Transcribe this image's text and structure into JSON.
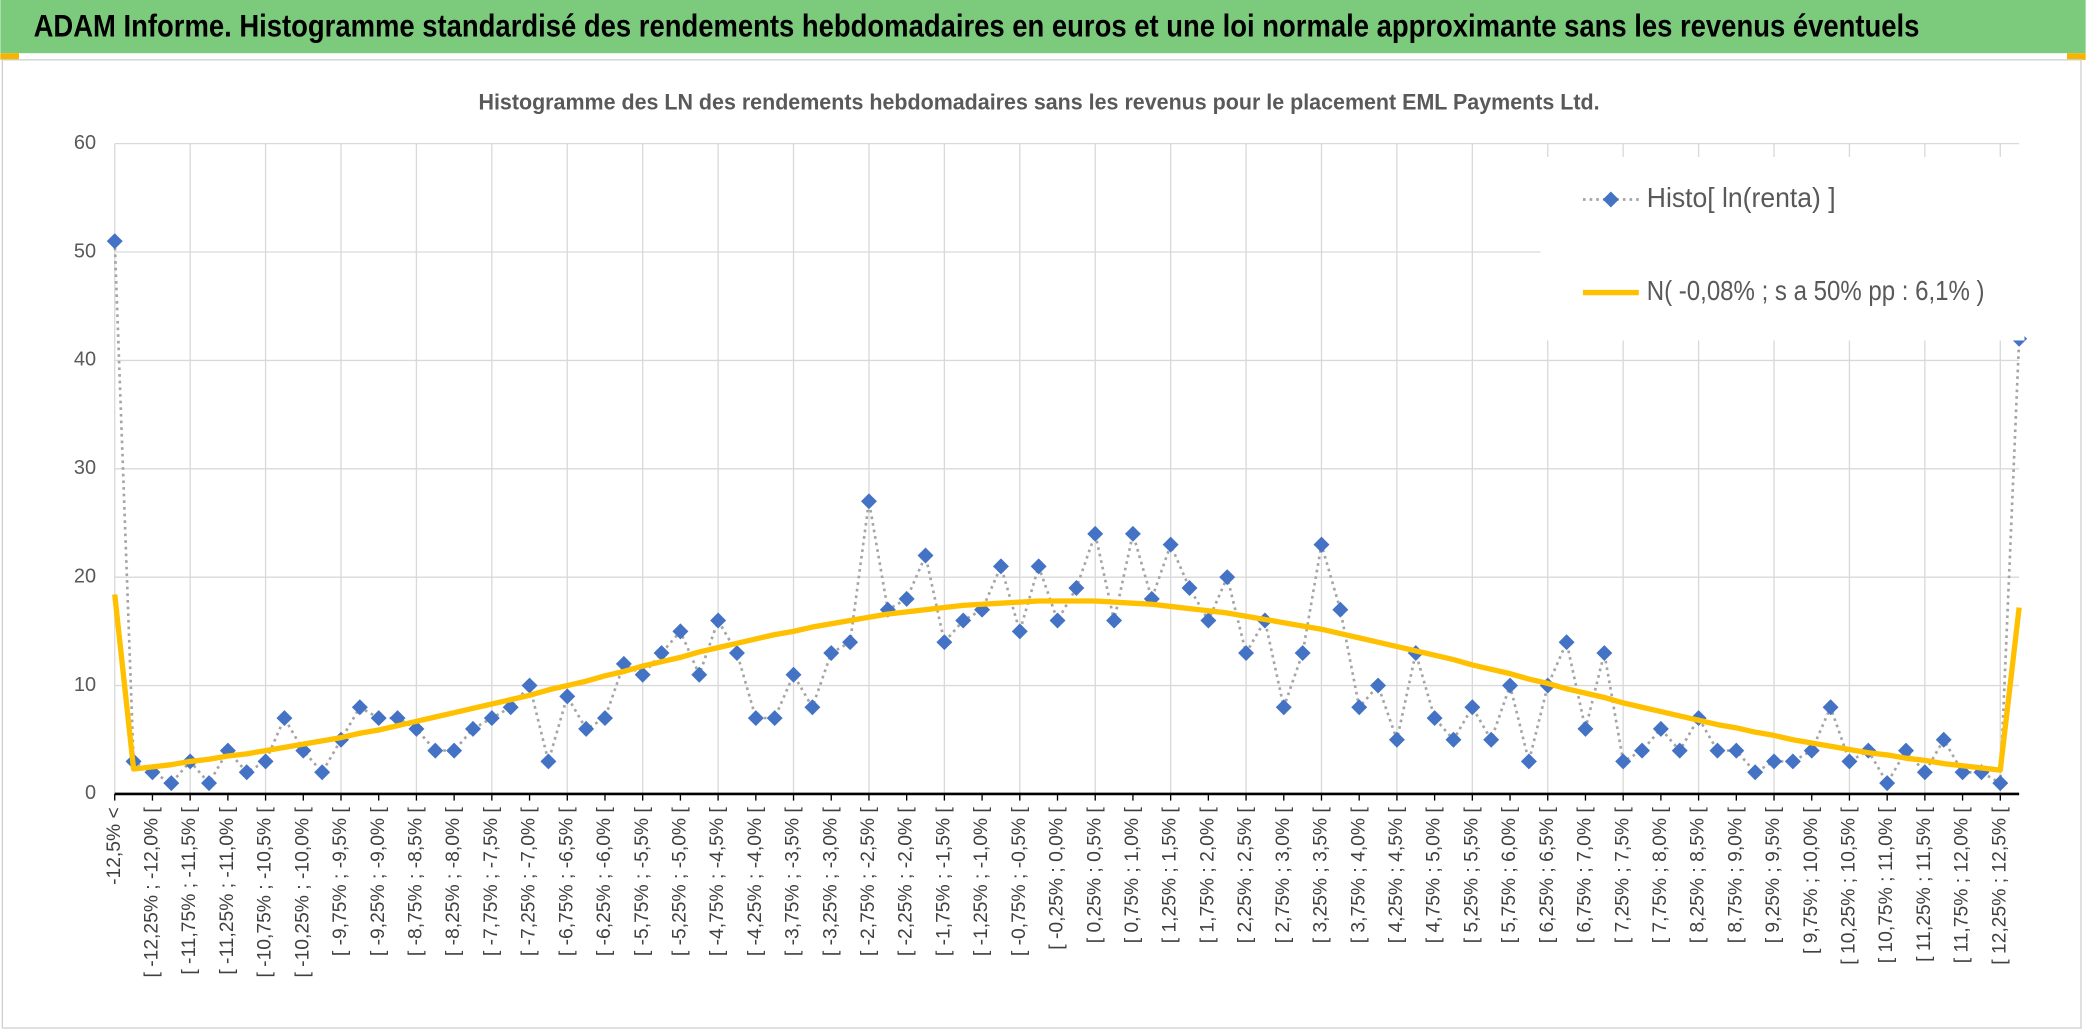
{
  "header": {
    "title": "ADAM Informe. Histogramme standardisé des rendements hebdomadaires en euros et une loi normale approximante sans les revenus éventuels"
  },
  "chart_data": {
    "type": "line",
    "title": "Histogramme des LN des rendements hebdomadaires sans les revenus pour le placement EML Payments Ltd.",
    "categories": [
      "-12,5% <",
      null,
      "[ -12,25% ; -12,0% [",
      null,
      "[ -11,75% ; -11,5% [",
      null,
      "[ -11,25% ; -11,0% [",
      null,
      "[ -10,75% ; -10,5% [",
      null,
      "[ -10,25% ; -10,0% [",
      null,
      "[ -9,75% ; -9,5% [",
      null,
      "[ -9,25% ; -9,0% [",
      null,
      "[ -8,75% ; -8,5% [",
      null,
      "[ -8,25% ; -8,0% [",
      null,
      "[ -7,75% ; -7,5% [",
      null,
      "[ -7,25% ; -7,0% [",
      null,
      "[ -6,75% ; -6,5% [",
      null,
      "[ -6,25% ; -6,0% [",
      null,
      "[ -5,75% ; -5,5% [",
      null,
      "[ -5,25% ; -5,0% [",
      null,
      "[ -4,75% ; -4,5% [",
      null,
      "[ -4,25% ; -4,0% [",
      null,
      "[ -3,75% ; -3,5% [",
      null,
      "[ -3,25% ; -3,0% [",
      null,
      "[ -2,75% ; -2,5% [",
      null,
      "[ -2,25% ; -2,0% [",
      null,
      "[ -1,75% ; -1,5% [",
      null,
      "[ -1,25% ; -1,0% [",
      null,
      "[ -0,75% ; -0,5% [",
      null,
      "[ -0,25% ; 0,0% [",
      null,
      "[ 0,25% ; 0,5% [",
      null,
      "[ 0,75% ; 1,0% [",
      null,
      "[ 1,25% ; 1,5% [",
      null,
      "[ 1,75% ; 2,0% [",
      null,
      "[ 2,25% ; 2,5% [",
      null,
      "[ 2,75% ; 3,0% [",
      null,
      "[ 3,25% ; 3,5% [",
      null,
      "[ 3,75% ; 4,0% [",
      null,
      "[ 4,25% ; 4,5% [",
      null,
      "[ 4,75% ; 5,0% [",
      null,
      "[ 5,25% ; 5,5% [",
      null,
      "[ 5,75% ; 6,0% [",
      null,
      "[ 6,25% ; 6,5% [",
      null,
      "[ 6,75% ; 7,0% [",
      null,
      "[ 7,25% ; 7,5% [",
      null,
      "[ 7,75% ; 8,0% [",
      null,
      "[ 8,25% ; 8,5% [",
      null,
      "[ 8,75% ; 9,0% [",
      null,
      "[ 9,25% ; 9,5% [",
      null,
      "[ 9,75% ; 10,0% [",
      null,
      "[ 10,25% ; 10,5% [",
      null,
      "[ 10,75% ; 11,0% [",
      null,
      "[ 11,25% ; 11,5% [",
      null,
      "[ 11,75% ; 12,0% [",
      null,
      "[ 12,25% ; 12,5% [",
      null
    ],
    "series": [
      {
        "name": "Histo[ ln(renta) ]",
        "color": "#4472c4",
        "line_color": "#a5a5a5",
        "line_style": "dotted",
        "marker": "diamond",
        "values": [
          51,
          3,
          2,
          1,
          3,
          1,
          4,
          2,
          3,
          7,
          4,
          2,
          5,
          8,
          7,
          7,
          6,
          4,
          4,
          6,
          7,
          8,
          10,
          3,
          9,
          6,
          7,
          12,
          11,
          13,
          15,
          11,
          16,
          13,
          7,
          7,
          11,
          8,
          13,
          14,
          27,
          17,
          18,
          22,
          14,
          16,
          17,
          21,
          15,
          21,
          16,
          19,
          24,
          16,
          24,
          18,
          23,
          19,
          16,
          20,
          13,
          16,
          8,
          13,
          23,
          17,
          8,
          10,
          5,
          13,
          7,
          5,
          8,
          5,
          10,
          3,
          10,
          14,
          6,
          13,
          3,
          4,
          6,
          4,
          7,
          4,
          4,
          2,
          3,
          3,
          4,
          8,
          3,
          4,
          1,
          4,
          2,
          5,
          2,
          2,
          1,
          42
        ]
      },
      {
        "name": "N( -0,08% ; s a 50% pp : 6,1% )",
        "color": "#ffc000",
        "line_style": "solid",
        "marker": "none",
        "values": [
          18.4,
          2.3,
          2.5,
          2.7,
          3.0,
          3.2,
          3.5,
          3.7,
          4.0,
          4.3,
          4.6,
          4.9,
          5.2,
          5.6,
          5.9,
          6.3,
          6.7,
          7.1,
          7.5,
          7.9,
          8.3,
          8.7,
          9.1,
          9.6,
          10.0,
          10.4,
          10.9,
          11.3,
          11.8,
          12.2,
          12.6,
          13.1,
          13.5,
          13.9,
          14.3,
          14.7,
          15.0,
          15.4,
          15.7,
          16.0,
          16.3,
          16.6,
          16.8,
          17.0,
          17.2,
          17.4,
          17.5,
          17.6,
          17.7,
          17.8,
          17.8,
          17.8,
          17.8,
          17.7,
          17.6,
          17.5,
          17.3,
          17.1,
          16.9,
          16.7,
          16.4,
          16.1,
          15.8,
          15.5,
          15.2,
          14.8,
          14.4,
          14.0,
          13.6,
          13.2,
          12.8,
          12.4,
          11.9,
          11.5,
          11.1,
          10.6,
          10.2,
          9.7,
          9.3,
          8.9,
          8.4,
          8.0,
          7.6,
          7.2,
          6.8,
          6.4,
          6.1,
          5.7,
          5.4,
          5.0,
          4.7,
          4.4,
          4.1,
          3.8,
          3.6,
          3.3,
          3.1,
          2.8,
          2.6,
          2.4,
          2.2,
          17.2
        ]
      }
    ],
    "ylim": [
      0,
      60
    ],
    "yticks": [
      0,
      10,
      20,
      30,
      40,
      50,
      60
    ],
    "grid": true,
    "legend": "top-right"
  }
}
